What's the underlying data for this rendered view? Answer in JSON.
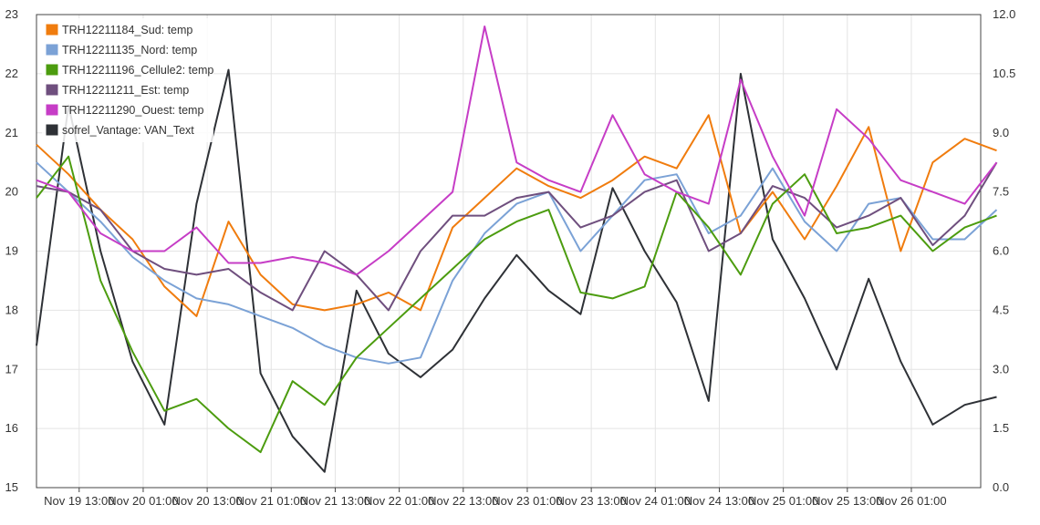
{
  "chart_data": {
    "type": "line",
    "title": "",
    "xlabel": "",
    "ylabel": "",
    "y2label": "",
    "x_range": [
      "Nov 19 05:00",
      "Nov 26 14:00"
    ],
    "x_ticks": [
      "Nov 19 13:00",
      "Nov 20 01:00",
      "Nov 20 13:00",
      "Nov 21 01:00",
      "Nov 21 13:00",
      "Nov 22 01:00",
      "Nov 22 13:00",
      "Nov 23 01:00",
      "Nov 23 13:00",
      "Nov 24 01:00",
      "Nov 24 13:00",
      "Nov 25 01:00",
      "Nov 25 13:00",
      "Nov 26 01:00"
    ],
    "ylim": [
      15,
      23
    ],
    "y_ticks": [
      "15",
      "16",
      "17",
      "18",
      "19",
      "20",
      "21",
      "22",
      "23"
    ],
    "y2lim": [
      0.0,
      12.0
    ],
    "y2_ticks": [
      "0.0",
      "1.5",
      "3.0",
      "4.5",
      "6.0",
      "7.5",
      "9.0",
      "10.5",
      "12.0"
    ],
    "grid": true,
    "legend_position": "top-left",
    "x_hours": [
      0,
      6,
      12,
      18,
      24,
      30,
      36,
      42,
      48,
      54,
      60,
      66,
      72,
      78,
      84,
      90,
      96,
      102,
      108,
      114,
      120,
      126,
      132,
      138,
      144,
      150,
      156,
      162,
      168,
      174,
      180
    ],
    "series": [
      {
        "name": "TRH12211184_Sud: temp",
        "axis": "left",
        "color": "#f07c0e",
        "values": [
          20.8,
          20.3,
          19.7,
          19.2,
          18.4,
          17.9,
          19.5,
          18.6,
          18.1,
          18.0,
          18.1,
          18.3,
          18.0,
          19.4,
          19.9,
          20.4,
          20.1,
          19.9,
          20.2,
          20.6,
          20.4,
          21.3,
          19.3,
          20.0,
          19.2,
          20.1,
          21.1,
          19.0,
          20.5,
          20.9,
          20.7
        ]
      },
      {
        "name": "TRH12211135_Nord: temp",
        "axis": "left",
        "color": "#7ba2d6",
        "values": [
          20.5,
          20.0,
          19.5,
          18.9,
          18.5,
          18.2,
          18.1,
          17.9,
          17.7,
          17.4,
          17.2,
          17.1,
          17.2,
          18.5,
          19.3,
          19.8,
          20.0,
          19.0,
          19.6,
          20.2,
          20.3,
          19.3,
          19.6,
          20.4,
          19.5,
          19.0,
          19.8,
          19.9,
          19.2,
          19.2,
          19.7
        ]
      },
      {
        "name": "TRH12211196_Cellule2: temp",
        "axis": "left",
        "color": "#4c9c0f",
        "values": [
          19.9,
          20.6,
          18.5,
          17.3,
          16.3,
          16.5,
          16.0,
          15.6,
          16.8,
          16.4,
          17.2,
          17.7,
          18.2,
          18.7,
          19.2,
          19.5,
          19.7,
          18.3,
          18.2,
          18.4,
          20.0,
          19.4,
          18.6,
          19.8,
          20.3,
          19.3,
          19.4,
          19.6,
          19.0,
          19.4,
          19.6
        ]
      },
      {
        "name": "TRH12211211_Est: temp",
        "axis": "left",
        "color": "#6f4f7e",
        "values": [
          20.1,
          20.0,
          19.7,
          19.0,
          18.7,
          18.6,
          18.7,
          18.3,
          18.0,
          19.0,
          18.6,
          18.0,
          19.0,
          19.6,
          19.6,
          19.9,
          20.0,
          19.4,
          19.6,
          20.0,
          20.2,
          19.0,
          19.3,
          20.1,
          19.9,
          19.4,
          19.6,
          19.9,
          19.1,
          19.6,
          20.5
        ]
      },
      {
        "name": "TRH12211290_Ouest: temp",
        "axis": "left",
        "color": "#c63dc6",
        "values": [
          20.2,
          20.0,
          19.3,
          19.0,
          19.0,
          19.4,
          18.8,
          18.8,
          18.9,
          18.8,
          18.6,
          19.0,
          19.5,
          20.0,
          22.8,
          20.5,
          20.2,
          20.0,
          21.3,
          20.3,
          20.0,
          19.8,
          21.9,
          20.6,
          19.6,
          21.4,
          20.9,
          20.2,
          20.0,
          19.8,
          20.5
        ]
      },
      {
        "name": "sofrel_Vantage: VAN_Text",
        "axis": "right",
        "color": "#2e3136",
        "values": [
          3.6,
          9.7,
          6.0,
          3.2,
          1.6,
          7.2,
          10.6,
          2.9,
          1.3,
          0.4,
          5.0,
          3.4,
          2.8,
          3.5,
          4.8,
          5.9,
          5.0,
          4.4,
          7.6,
          6.0,
          4.7,
          2.2,
          10.5,
          6.3,
          4.8,
          3.0,
          5.3,
          3.2,
          1.6,
          2.1,
          2.3
        ]
      }
    ]
  }
}
